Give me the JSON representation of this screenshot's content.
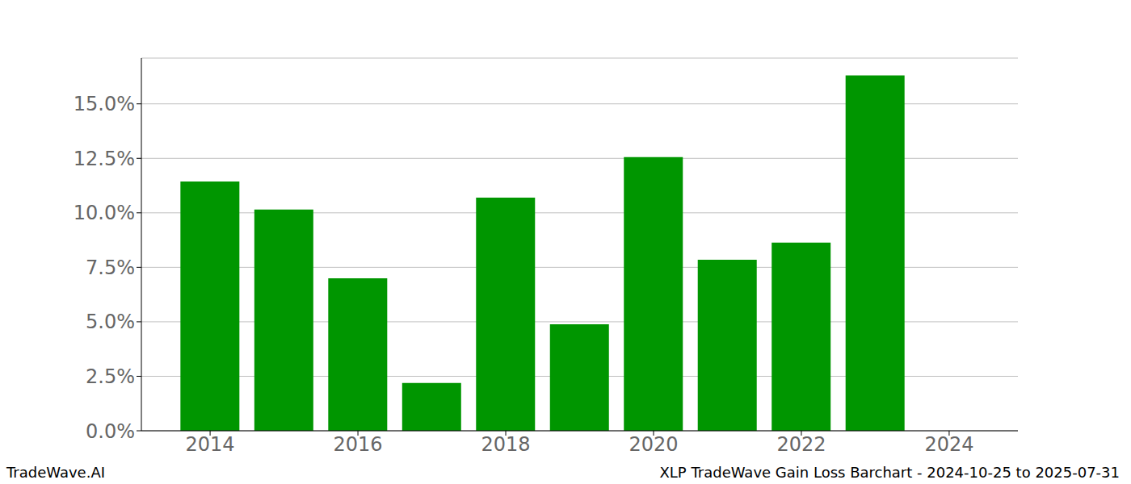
{
  "chart_data": {
    "type": "bar",
    "title": "XLP TradeWave Gain Loss Barchart - 2024-10-25 to 2025-07-31",
    "subtitle": "TradeWave.AI",
    "x": [
      2014,
      2015,
      2016,
      2017,
      2018,
      2019,
      2020,
      2021,
      2022,
      2023
    ],
    "values": [
      11.44,
      10.15,
      7.0,
      2.19,
      10.7,
      4.89,
      12.56,
      7.85,
      8.63,
      16.3
    ],
    "color": "#009600",
    "xlim": [
      2013.07,
      2024.93
    ],
    "xticks": [
      2014,
      2016,
      2018,
      2020,
      2022,
      2024
    ],
    "ylim": [
      0,
      17.1
    ],
    "yticks": [
      {
        "value": 0,
        "label": "0.0%"
      },
      {
        "value": 2.5,
        "label": "2.5%"
      },
      {
        "value": 5,
        "label": "5.0%"
      },
      {
        "value": 7.5,
        "label": "7.5%"
      },
      {
        "value": 10,
        "label": "10.0%"
      },
      {
        "value": 12.5,
        "label": "12.5%"
      },
      {
        "value": 15,
        "label": "15.0%"
      }
    ],
    "grid": true
  }
}
